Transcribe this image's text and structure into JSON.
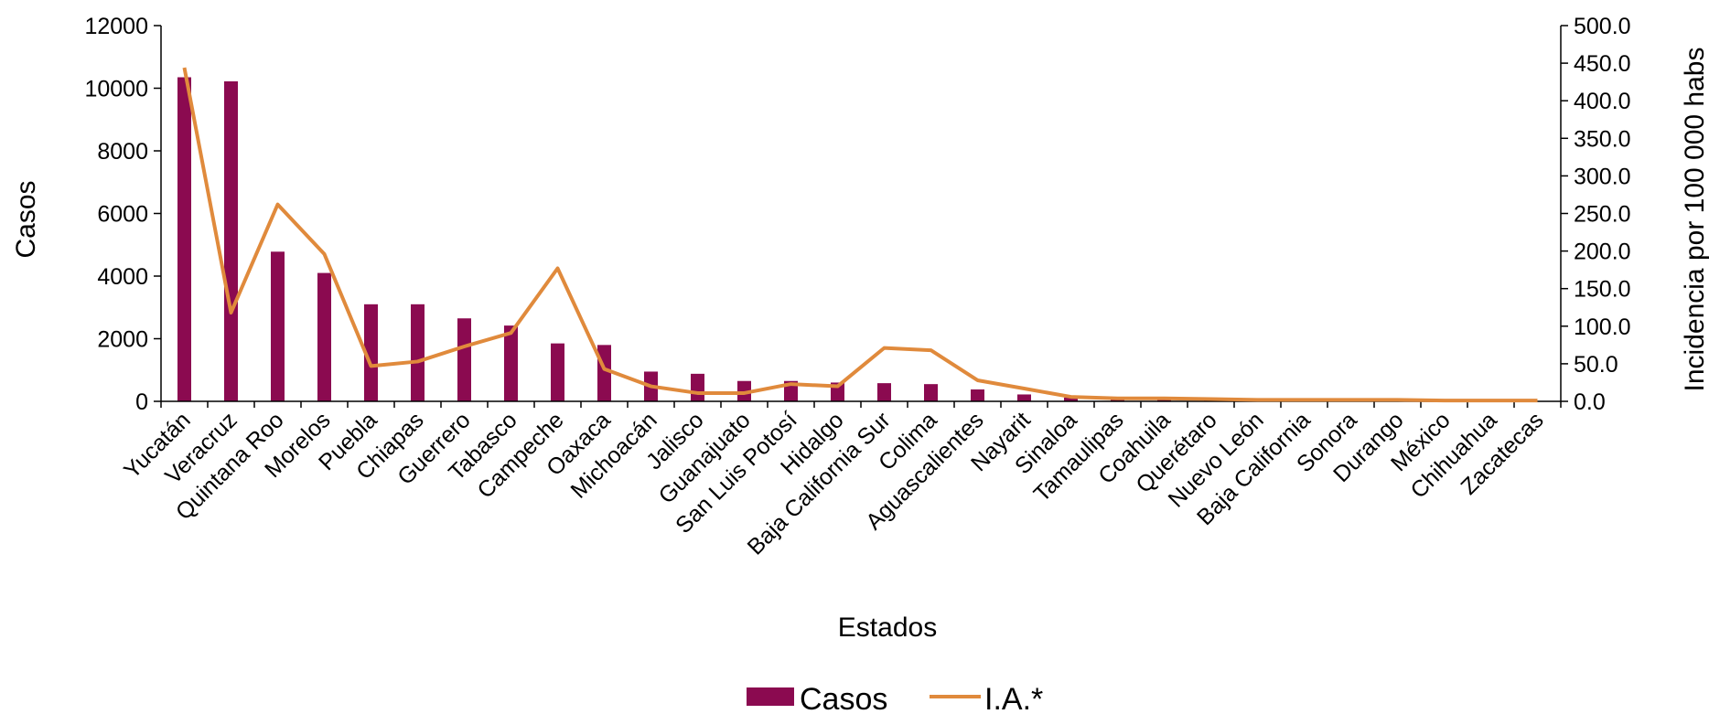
{
  "chart_data": {
    "type": "bar",
    "xlabel": "Estados",
    "ylabel": "Casos",
    "y2label": "Incidencia por 100 000 habs",
    "ylim": [
      0,
      12000
    ],
    "y2lim": [
      0,
      500
    ],
    "yticks": [
      "0",
      "2000",
      "4000",
      "6000",
      "8000",
      "10000",
      "12000"
    ],
    "y2ticks": [
      "0.0",
      "50.0",
      "100.0",
      "150.0",
      "200.0",
      "250.0",
      "300.0",
      "350.0",
      "400.0",
      "450.0",
      "500.0"
    ],
    "grid": false,
    "legend_position": "bottom",
    "categories": [
      "Yucatán",
      "Veracruz",
      "Quintana Roo",
      "Morelos",
      "Puebla",
      "Chiapas",
      "Guerrero",
      "Tabasco",
      "Campeche",
      "Oaxaca",
      "Michoacán",
      "Jalisco",
      "Guanajuato",
      "San Luis Potosí",
      "Hidalgo",
      "Baja California Sur",
      "Colima",
      "Aguascalientes",
      "Nayarit",
      "Sinaloa",
      "Tamaulipas",
      "Coahuila",
      "Querétaro",
      "Nuevo León",
      "Baja California",
      "Sonora",
      "Durango",
      "México",
      "Chihuahua",
      "Zacatecas"
    ],
    "series": [
      {
        "name": "Casos",
        "type": "bar",
        "axis": "left",
        "color": "#8B0A50",
        "values": [
          10350,
          10220,
          4780,
          4100,
          3100,
          3100,
          2650,
          2420,
          1850,
          1800,
          950,
          880,
          650,
          650,
          600,
          580,
          550,
          380,
          220,
          120,
          60,
          50,
          40,
          30,
          25,
          20,
          15,
          10,
          8,
          5
        ]
      },
      {
        "name": "I.A.*",
        "type": "line",
        "axis": "right",
        "color": "#E08A3C",
        "values": [
          444,
          118,
          262,
          196,
          47,
          53,
          73,
          91,
          177,
          43,
          20,
          11,
          11,
          23,
          20,
          71,
          68,
          28,
          17,
          6,
          4,
          4,
          3,
          2,
          2,
          2,
          2,
          1,
          1,
          1
        ]
      }
    ]
  }
}
